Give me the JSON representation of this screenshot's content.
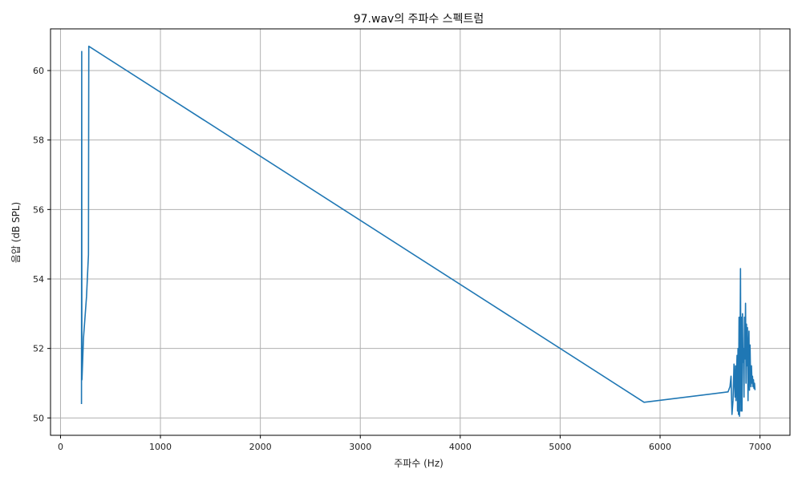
{
  "chart_data": {
    "type": "line",
    "title": "97.wav의 주파수 스펙트럼",
    "xlabel": "주파수 (Hz)",
    "ylabel": "음압 (dB SPL)",
    "xlim": [
      -100,
      7300
    ],
    "ylim": [
      49.5,
      61.2
    ],
    "xticks": [
      0,
      1000,
      2000,
      3000,
      4000,
      5000,
      6000,
      7000
    ],
    "yticks": [
      50,
      52,
      54,
      56,
      58,
      60
    ],
    "grid": true,
    "legend": "none",
    "series": [
      {
        "color": "#1f77b4",
        "x": [
          210,
          212,
          213,
          214,
          215,
          230,
          260,
          280,
          283,
          5840,
          6680,
          6700,
          6710,
          6720,
          6730,
          6740,
          6745,
          6750,
          6755,
          6760,
          6765,
          6770,
          6775,
          6780,
          6785,
          6790,
          6795,
          6800,
          6805,
          6810,
          6815,
          6820,
          6825,
          6830,
          6835,
          6840,
          6845,
          6850,
          6855,
          6860,
          6865,
          6870,
          6875,
          6880,
          6885,
          6890,
          6895,
          6900,
          6905,
          6910,
          6915,
          6920,
          6925,
          6930,
          6935,
          6940,
          6945,
          6950
        ],
        "y": [
          50.4,
          60.55,
          54.6,
          51.2,
          51.1,
          52.3,
          53.5,
          54.7,
          60.7,
          50.45,
          50.75,
          50.9,
          51.2,
          50.1,
          50.5,
          51.55,
          51.0,
          50.6,
          51.5,
          50.5,
          51.2,
          51.8,
          50.2,
          52.0,
          50.1,
          52.9,
          50.05,
          51.7,
          54.3,
          50.2,
          52.9,
          50.2,
          53.0,
          51.6,
          52.0,
          50.6,
          52.9,
          51.7,
          53.3,
          51.0,
          52.7,
          51.5,
          52.6,
          50.5,
          51.9,
          52.5,
          50.8,
          52.1,
          51.3,
          50.9,
          51.5,
          51.0,
          51.2,
          50.9,
          51.1,
          50.85,
          51.0,
          50.8
        ]
      }
    ]
  }
}
